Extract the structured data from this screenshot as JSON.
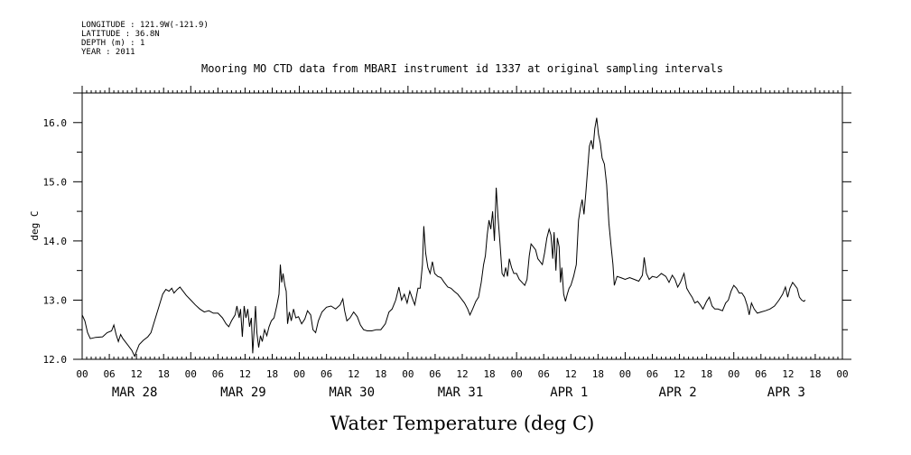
{
  "header": {
    "meta_lines": [
      "LONGITUDE : 121.9W(-121.9)",
      "LATITUDE : 36.8N",
      "DEPTH (m) : 1",
      "YEAR : 2011"
    ]
  },
  "chart_data": {
    "type": "line",
    "title": "Mooring MO CTD data from MBARI instrument id 1337 at original sampling intervals",
    "xlabel": "Water Temperature (deg C)",
    "ylabel": "deg C",
    "ylim": [
      12.0,
      16.5
    ],
    "yticks": [
      "12.0",
      "13.0",
      "14.0",
      "15.0",
      "16.0"
    ],
    "xlim_hours": [
      0,
      168
    ],
    "hour_ticks": [
      "00",
      "06",
      "12",
      "18",
      "00",
      "06",
      "12",
      "18",
      "00",
      "06",
      "12",
      "18",
      "00",
      "06",
      "12",
      "18",
      "00",
      "06",
      "12",
      "18",
      "00",
      "06",
      "12",
      "18",
      "00",
      "06",
      "12",
      "18",
      "00"
    ],
    "day_labels": [
      "MAR 28",
      "MAR 29",
      "MAR 30",
      "MAR 31",
      "APR  1",
      "APR  2",
      "APR  3"
    ],
    "grid": false,
    "series": [
      {
        "points": [
          [
            0.0,
            12.75
          ],
          [
            0.6,
            12.65
          ],
          [
            1.2,
            12.45
          ],
          [
            1.8,
            12.35
          ],
          [
            3,
            12.37
          ],
          [
            4.5,
            12.38
          ],
          [
            5.5,
            12.45
          ],
          [
            6.5,
            12.48
          ],
          [
            7.0,
            12.58
          ],
          [
            7.5,
            12.42
          ],
          [
            8.0,
            12.3
          ],
          [
            8.5,
            12.42
          ],
          [
            9.0,
            12.35
          ],
          [
            10,
            12.25
          ],
          [
            11,
            12.15
          ],
          [
            11.6,
            12.05
          ],
          [
            12.1,
            12.15
          ],
          [
            12.6,
            12.25
          ],
          [
            13.5,
            12.32
          ],
          [
            14.5,
            12.38
          ],
          [
            15.2,
            12.45
          ],
          [
            16.0,
            12.65
          ],
          [
            17.0,
            12.9
          ],
          [
            17.8,
            13.1
          ],
          [
            18.5,
            13.18
          ],
          [
            19.2,
            13.15
          ],
          [
            19.8,
            13.2
          ],
          [
            20.3,
            13.12
          ],
          [
            21.0,
            13.18
          ],
          [
            21.6,
            13.22
          ],
          [
            22.3,
            13.15
          ],
          [
            23.0,
            13.08
          ],
          [
            24.0,
            13.0
          ],
          [
            25.0,
            12.92
          ],
          [
            26.0,
            12.85
          ],
          [
            27.0,
            12.8
          ],
          [
            28.0,
            12.82
          ],
          [
            29.0,
            12.78
          ],
          [
            30.0,
            12.78
          ],
          [
            31.0,
            12.7
          ],
          [
            31.8,
            12.6
          ],
          [
            32.4,
            12.55
          ],
          [
            33.0,
            12.65
          ],
          [
            33.8,
            12.75
          ],
          [
            34.2,
            12.9
          ],
          [
            34.7,
            12.7
          ],
          [
            35.0,
            12.85
          ],
          [
            35.4,
            12.38
          ],
          [
            35.8,
            12.9
          ],
          [
            36.2,
            12.7
          ],
          [
            36.6,
            12.85
          ],
          [
            37.0,
            12.55
          ],
          [
            37.4,
            12.7
          ],
          [
            37.7,
            12.1
          ],
          [
            38.0,
            12.5
          ],
          [
            38.3,
            12.9
          ],
          [
            38.6,
            12.45
          ],
          [
            39.0,
            12.2
          ],
          [
            39.4,
            12.4
          ],
          [
            39.8,
            12.3
          ],
          [
            40.3,
            12.5
          ],
          [
            40.8,
            12.4
          ],
          [
            41.3,
            12.55
          ],
          [
            41.8,
            12.65
          ],
          [
            42.4,
            12.7
          ],
          [
            43.0,
            12.9
          ],
          [
            43.5,
            13.1
          ],
          [
            43.8,
            13.6
          ],
          [
            44.1,
            13.3
          ],
          [
            44.4,
            13.45
          ],
          [
            44.8,
            13.25
          ],
          [
            45.1,
            13.15
          ],
          [
            45.4,
            12.6
          ],
          [
            45.8,
            12.8
          ],
          [
            46.2,
            12.65
          ],
          [
            46.7,
            12.85
          ],
          [
            47.2,
            12.7
          ],
          [
            47.8,
            12.72
          ],
          [
            48.5,
            12.6
          ],
          [
            49.2,
            12.68
          ],
          [
            49.8,
            12.82
          ],
          [
            50.5,
            12.75
          ],
          [
            51.0,
            12.5
          ],
          [
            51.6,
            12.45
          ],
          [
            52.2,
            12.65
          ],
          [
            53.0,
            12.8
          ],
          [
            54.0,
            12.88
          ],
          [
            55.0,
            12.9
          ],
          [
            56.0,
            12.85
          ],
          [
            57.0,
            12.92
          ],
          [
            57.6,
            13.02
          ],
          [
            58.0,
            12.82
          ],
          [
            58.5,
            12.65
          ],
          [
            59.2,
            12.7
          ],
          [
            60.0,
            12.8
          ],
          [
            60.8,
            12.72
          ],
          [
            61.5,
            12.58
          ],
          [
            62.2,
            12.5
          ],
          [
            63.0,
            12.48
          ],
          [
            64.0,
            12.48
          ],
          [
            65.0,
            12.5
          ],
          [
            66.0,
            12.5
          ],
          [
            67.0,
            12.6
          ],
          [
            67.8,
            12.8
          ],
          [
            68.5,
            12.85
          ],
          [
            69.3,
            13.0
          ],
          [
            70.0,
            13.22
          ],
          [
            70.6,
            13.0
          ],
          [
            71.2,
            13.1
          ],
          [
            71.8,
            12.95
          ],
          [
            72.4,
            13.15
          ],
          [
            73.0,
            13.02
          ],
          [
            73.5,
            12.92
          ],
          [
            74.2,
            13.2
          ],
          [
            74.7,
            13.2
          ],
          [
            75.2,
            13.6
          ],
          [
            75.5,
            14.25
          ],
          [
            75.9,
            13.8
          ],
          [
            76.4,
            13.55
          ],
          [
            76.9,
            13.45
          ],
          [
            77.4,
            13.65
          ],
          [
            77.9,
            13.45
          ],
          [
            78.6,
            13.4
          ],
          [
            79.3,
            13.38
          ],
          [
            80.0,
            13.3
          ],
          [
            80.8,
            13.22
          ],
          [
            81.5,
            13.2
          ],
          [
            82.2,
            13.15
          ],
          [
            83.0,
            13.1
          ],
          [
            83.8,
            13.02
          ],
          [
            84.5,
            12.95
          ],
          [
            85.2,
            12.85
          ],
          [
            85.7,
            12.75
          ],
          [
            86.3,
            12.85
          ],
          [
            87.0,
            12.98
          ],
          [
            87.6,
            13.05
          ],
          [
            88.2,
            13.3
          ],
          [
            88.7,
            13.6
          ],
          [
            89.1,
            13.75
          ],
          [
            89.5,
            14.1
          ],
          [
            89.9,
            14.35
          ],
          [
            90.3,
            14.2
          ],
          [
            90.7,
            14.5
          ],
          [
            91.1,
            14.0
          ],
          [
            91.5,
            14.9
          ],
          [
            91.9,
            14.4
          ],
          [
            92.3,
            14.0
          ],
          [
            92.8,
            13.45
          ],
          [
            93.2,
            13.4
          ],
          [
            93.6,
            13.55
          ],
          [
            94.0,
            13.4
          ],
          [
            94.4,
            13.7
          ],
          [
            94.9,
            13.55
          ],
          [
            95.4,
            13.45
          ],
          [
            96.0,
            13.45
          ],
          [
            96.6,
            13.35
          ],
          [
            97.2,
            13.3
          ],
          [
            97.8,
            13.25
          ],
          [
            98.3,
            13.35
          ],
          [
            98.8,
            13.75
          ],
          [
            99.2,
            13.95
          ],
          [
            99.7,
            13.9
          ],
          [
            100.2,
            13.85
          ],
          [
            100.7,
            13.7
          ],
          [
            101.2,
            13.65
          ],
          [
            101.7,
            13.6
          ],
          [
            102.2,
            13.8
          ],
          [
            102.7,
            14.05
          ],
          [
            103.2,
            14.2
          ],
          [
            103.6,
            14.1
          ],
          [
            104.0,
            13.7
          ],
          [
            104.3,
            14.15
          ],
          [
            104.7,
            13.5
          ],
          [
            105.0,
            14.05
          ],
          [
            105.4,
            13.9
          ],
          [
            105.7,
            13.3
          ],
          [
            106.0,
            13.55
          ],
          [
            106.4,
            13.1
          ],
          [
            106.8,
            12.98
          ],
          [
            107.2,
            13.1
          ],
          [
            107.6,
            13.2
          ],
          [
            108.0,
            13.25
          ],
          [
            108.6,
            13.4
          ],
          [
            109.2,
            13.6
          ],
          [
            109.7,
            14.35
          ],
          [
            110.1,
            14.55
          ],
          [
            110.5,
            14.7
          ],
          [
            110.9,
            14.45
          ],
          [
            111.3,
            14.8
          ],
          [
            111.7,
            15.2
          ],
          [
            112.1,
            15.6
          ],
          [
            112.5,
            15.7
          ],
          [
            112.9,
            15.55
          ],
          [
            113.3,
            15.9
          ],
          [
            113.7,
            16.08
          ],
          [
            114.1,
            15.8
          ],
          [
            114.5,
            15.65
          ],
          [
            114.9,
            15.4
          ],
          [
            115.4,
            15.3
          ],
          [
            115.9,
            14.95
          ],
          [
            116.4,
            14.3
          ],
          [
            116.9,
            13.9
          ],
          [
            117.3,
            13.6
          ],
          [
            117.6,
            13.25
          ],
          [
            118.2,
            13.4
          ],
          [
            119.0,
            13.38
          ],
          [
            120.0,
            13.35
          ],
          [
            121.0,
            13.38
          ],
          [
            122.0,
            13.35
          ],
          [
            123.0,
            13.32
          ],
          [
            123.8,
            13.42
          ],
          [
            124.2,
            13.72
          ],
          [
            124.7,
            13.45
          ],
          [
            125.3,
            13.35
          ],
          [
            126.0,
            13.4
          ],
          [
            127.0,
            13.38
          ],
          [
            128.0,
            13.45
          ],
          [
            129.0,
            13.4
          ],
          [
            129.7,
            13.3
          ],
          [
            130.4,
            13.42
          ],
          [
            131.0,
            13.35
          ],
          [
            131.6,
            13.22
          ],
          [
            132.2,
            13.3
          ],
          [
            133.0,
            13.45
          ],
          [
            133.6,
            13.2
          ],
          [
            134.2,
            13.12
          ],
          [
            134.8,
            13.05
          ],
          [
            135.4,
            12.95
          ],
          [
            136.0,
            12.98
          ],
          [
            136.6,
            12.92
          ],
          [
            137.2,
            12.85
          ],
          [
            138.0,
            12.98
          ],
          [
            138.6,
            13.05
          ],
          [
            139.2,
            12.9
          ],
          [
            139.8,
            12.85
          ],
          [
            140.5,
            12.85
          ],
          [
            141.5,
            12.82
          ],
          [
            142.2,
            12.95
          ],
          [
            142.8,
            13.0
          ],
          [
            143.4,
            13.15
          ],
          [
            144.0,
            13.25
          ],
          [
            144.6,
            13.2
          ],
          [
            145.2,
            13.12
          ],
          [
            145.8,
            13.12
          ],
          [
            146.4,
            13.05
          ],
          [
            147.0,
            12.9
          ],
          [
            147.4,
            12.75
          ],
          [
            147.9,
            12.95
          ],
          [
            148.5,
            12.85
          ],
          [
            149.2,
            12.78
          ],
          [
            150.0,
            12.8
          ],
          [
            151.0,
            12.82
          ],
          [
            152.0,
            12.85
          ],
          [
            153.0,
            12.9
          ],
          [
            154.0,
            13.0
          ],
          [
            154.8,
            13.1
          ],
          [
            155.4,
            13.22
          ],
          [
            155.9,
            13.05
          ],
          [
            156.4,
            13.2
          ],
          [
            157.0,
            13.3
          ],
          [
            157.5,
            13.25
          ],
          [
            158.0,
            13.2
          ],
          [
            158.5,
            13.05
          ],
          [
            159.0,
            13.0
          ],
          [
            159.5,
            12.98
          ],
          [
            159.8,
            13.0
          ]
        ]
      }
    ]
  }
}
